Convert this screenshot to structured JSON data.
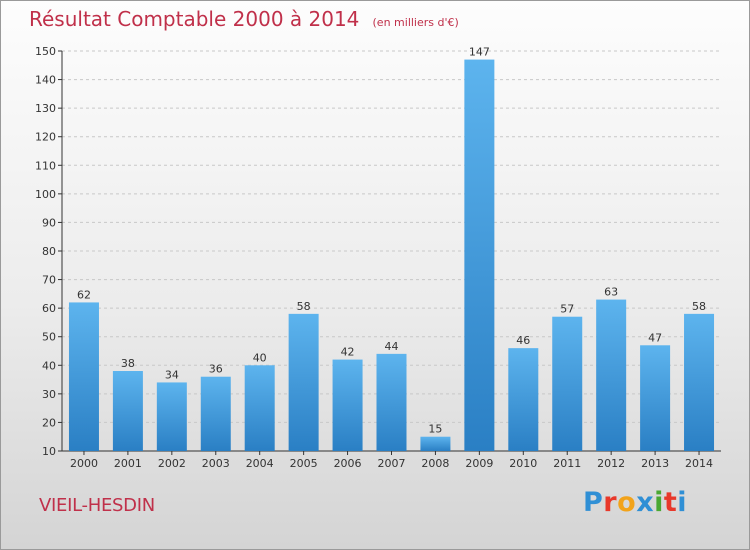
{
  "header": {
    "title": "Résultat Comptable 2000 à 2014",
    "subtitle": "(en milliers d'€)"
  },
  "commune": "VIEIL-HESDIN",
  "logo": {
    "text": "Proxiti",
    "colors": [
      "#2f8fd5",
      "#e8382a",
      "#f2a31a",
      "#2f8fd5",
      "#4aa832",
      "#e8382a",
      "#2f8fd5"
    ]
  },
  "colors": {
    "title": "#c0304a",
    "bar_light": "#5db4ee",
    "bar_dark": "#2a7fc4",
    "grid": "#c8c8c8",
    "axis": "#333333"
  },
  "chart_data": {
    "type": "bar",
    "title": "Résultat Comptable 2000 à 2014",
    "xlabel": "",
    "ylabel": "",
    "categories": [
      "2000",
      "2001",
      "2002",
      "2003",
      "2004",
      "2005",
      "2006",
      "2007",
      "2008",
      "2009",
      "2010",
      "2011",
      "2012",
      "2013",
      "2014"
    ],
    "values": [
      62,
      38,
      34,
      36,
      40,
      58,
      42,
      44,
      15,
      147,
      46,
      57,
      63,
      47,
      58
    ],
    "ylim": [
      10,
      150
    ],
    "yticks": [
      10,
      20,
      30,
      40,
      50,
      60,
      70,
      80,
      90,
      100,
      110,
      120,
      130,
      140,
      150
    ],
    "grid": true,
    "legend": "none"
  }
}
